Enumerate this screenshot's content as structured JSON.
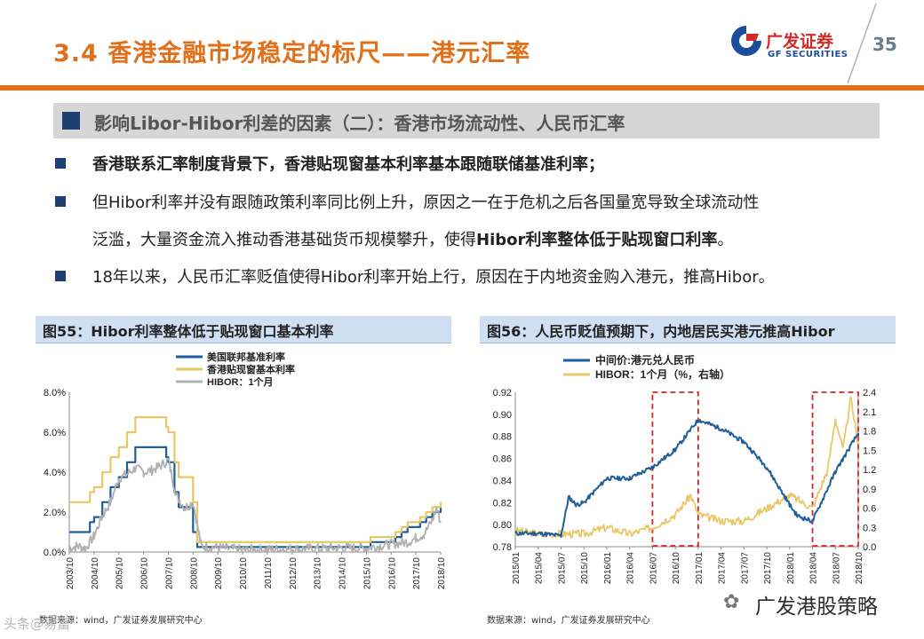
{
  "header": {
    "title": "3.4 香港金融市场稳定的标尺——港元汇率",
    "page_number": "35",
    "logo_cn": "广发证券",
    "logo_en": "GF SECURITIES"
  },
  "section": {
    "heading": "影响Libor-Hibor利差的因素（二）：香港市场流动性、人民币汇率"
  },
  "bullets": {
    "b1": "香港联系汇率制度背景下，香港贴现窗基本利率基本跟随联储基准利率；",
    "b2_line1": "但Hibor利率并没有跟随政策利率同比例上升，原因之一在于危机之后各国量宽导致全球流动性",
    "b2_line2_a": "泛滥，大量资金流入推动香港基础货币规模攀升，使得",
    "b2_line2_b": "Hibor利率整体低于贴现窗口利率",
    "b2_line2_c": "。",
    "b3": "18年以来，人民币汇率贬值使得Hibor利率开始上行，原因在于内地资金购入港元，推高Hibor。"
  },
  "colors": {
    "accent": "#E0701A",
    "navy": "#1F3F73",
    "blue_series": "#1F5F99",
    "gold_series": "#E8C766",
    "gray_series": "#B0B0B0",
    "highlight": "#E02020"
  },
  "figure55": {
    "title": "图55：Hibor利率整体低于贴现窗口基本利率",
    "source": "数据来源：wind，广发证券发展研究中心"
  },
  "figure56": {
    "title": "图56：人民币贬值预期下，内地居民买港元推高Hibor",
    "source": "数据来源：wind，广发证券发展研究中心"
  },
  "watermark": {
    "text": "广发港股策略",
    "corner": "头条@易富"
  },
  "chart_data": [
    {
      "type": "line",
      "title": "",
      "ylim": [
        0,
        8
      ],
      "yticks": [
        "0.0%",
        "2.0%",
        "4.0%",
        "6.0%",
        "8.0%"
      ],
      "xticks": [
        "2003/10",
        "2004/10",
        "2005/10",
        "2006/10",
        "2007/10",
        "2008/10",
        "2009/10",
        "2010/10",
        "2011/10",
        "2012/10",
        "2013/10",
        "2014/10",
        "2015/10",
        "2016/10",
        "2017/10",
        "2018/10"
      ],
      "legend_position": "top",
      "series": [
        {
          "name": "美国联邦基准利率",
          "x": [
            "2003/10",
            "2004/06",
            "2004/08",
            "2004/10",
            "2005/02",
            "2005/06",
            "2005/10",
            "2006/02",
            "2006/06",
            "2007/08",
            "2007/09",
            "2007/10",
            "2008/01",
            "2008/03",
            "2008/10",
            "2008/12",
            "2015/12",
            "2016/12",
            "2017/03",
            "2017/06",
            "2017/12",
            "2018/03",
            "2018/06",
            "2018/10"
          ],
          "values": [
            1.0,
            1.0,
            1.5,
            1.75,
            2.5,
            3.25,
            3.75,
            4.5,
            5.25,
            5.25,
            4.75,
            4.5,
            3.0,
            2.25,
            1.0,
            0.25,
            0.5,
            0.75,
            1.0,
            1.25,
            1.5,
            1.75,
            2.0,
            2.25
          ]
        },
        {
          "name": "香港贴现窗基本利率",
          "x": [
            "2003/10",
            "2004/06",
            "2004/08",
            "2004/10",
            "2005/02",
            "2005/06",
            "2005/10",
            "2006/02",
            "2006/06",
            "2007/08",
            "2007/09",
            "2007/10",
            "2008/01",
            "2008/03",
            "2008/10",
            "2008/12",
            "2015/12",
            "2016/12",
            "2017/03",
            "2017/06",
            "2017/12",
            "2018/03",
            "2018/06",
            "2018/10"
          ],
          "values": [
            2.5,
            2.5,
            3.0,
            3.25,
            4.0,
            4.75,
            5.25,
            6.0,
            6.75,
            6.75,
            6.25,
            6.0,
            4.5,
            3.75,
            2.5,
            0.5,
            0.75,
            1.0,
            1.25,
            1.5,
            1.75,
            2.0,
            2.25,
            2.5
          ]
        },
        {
          "name": "HIBOR：1个月",
          "x": [
            "2003/10",
            "2004/02",
            "2004/06",
            "2004/10",
            "2005/02",
            "2005/06",
            "2005/10",
            "2006/02",
            "2006/06",
            "2006/10",
            "2007/02",
            "2007/06",
            "2007/10",
            "2008/02",
            "2008/06",
            "2008/10",
            "2009/02",
            "2010/10",
            "2012/10",
            "2014/10",
            "2015/10",
            "2016/10",
            "2017/06",
            "2017/10",
            "2018/02",
            "2018/06",
            "2018/08",
            "2018/10"
          ],
          "values": [
            0.2,
            0.3,
            0.2,
            0.8,
            1.8,
            2.5,
            3.7,
            3.9,
            4.2,
            4.0,
            4.1,
            4.3,
            4.6,
            2.8,
            2.2,
            2.5,
            0.3,
            0.1,
            0.15,
            0.2,
            0.2,
            0.4,
            0.5,
            0.7,
            0.9,
            1.6,
            2.2,
            1.5
          ]
        }
      ]
    },
    {
      "type": "line",
      "title": "",
      "ylim": [
        0.78,
        0.92
      ],
      "ylim_right": [
        0,
        2.4
      ],
      "yticks": [
        "0.78",
        "0.80",
        "0.82",
        "0.84",
        "0.86",
        "0.88",
        "0.90",
        "0.92"
      ],
      "yticks_right": [
        "0.0",
        "0.3",
        "0.6",
        "0.9",
        "1.2",
        "1.5",
        "1.8",
        "2.1",
        "2.4"
      ],
      "xticks": [
        "2015/01",
        "2015/04",
        "2015/07",
        "2015/10",
        "2016/01",
        "2016/04",
        "2016/07",
        "2016/10",
        "2017/01",
        "2017/04",
        "2017/07",
        "2017/10",
        "2018/01",
        "2018/04",
        "2018/07",
        "2018/10"
      ],
      "highlighted_periods": [
        [
          "2016/07",
          "2017/01"
        ],
        [
          "2018/04",
          "2018/10"
        ]
      ],
      "legend_position": "top-left",
      "series": [
        {
          "name": "中间价:港元兑人民币",
          "axis": "left",
          "x": [
            "2015/01",
            "2015/04",
            "2015/07",
            "2015/08",
            "2015/09",
            "2015/10",
            "2016/01",
            "2016/04",
            "2016/07",
            "2016/10",
            "2017/01",
            "2017/04",
            "2017/07",
            "2017/10",
            "2018/01",
            "2018/02",
            "2018/04",
            "2018/07",
            "2018/10"
          ],
          "values": [
            0.792,
            0.792,
            0.79,
            0.825,
            0.818,
            0.82,
            0.842,
            0.842,
            0.852,
            0.868,
            0.895,
            0.887,
            0.875,
            0.852,
            0.818,
            0.808,
            0.803,
            0.848,
            0.883
          ]
        },
        {
          "name": "HIBOR：1个月（%，右轴）",
          "axis": "right",
          "x": [
            "2015/01",
            "2015/04",
            "2015/07",
            "2015/10",
            "2016/01",
            "2016/04",
            "2016/07",
            "2016/10",
            "2016/12",
            "2017/01",
            "2017/04",
            "2017/07",
            "2017/10",
            "2018/01",
            "2018/04",
            "2018/06",
            "2018/07",
            "2018/08",
            "2018/09",
            "2018/10"
          ],
          "values": [
            0.25,
            0.2,
            0.2,
            0.2,
            0.3,
            0.2,
            0.3,
            0.5,
            0.8,
            0.5,
            0.4,
            0.4,
            0.6,
            0.8,
            0.6,
            1.2,
            2.0,
            1.5,
            2.3,
            1.6
          ]
        }
      ]
    }
  ]
}
